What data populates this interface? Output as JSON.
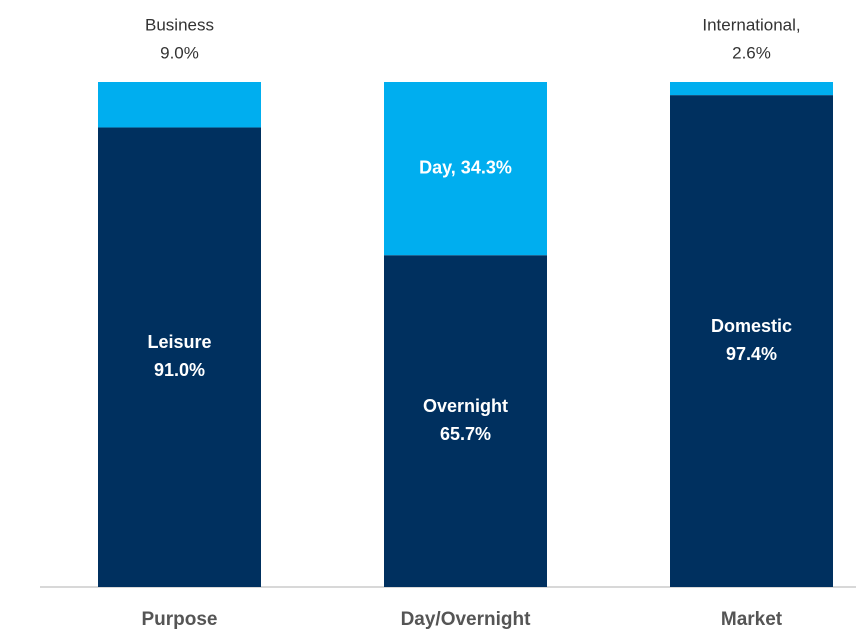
{
  "chart_data": {
    "type": "stacked_bar",
    "categories": [
      "Purpose",
      "Day/Overnight",
      "Market"
    ],
    "ylim": [
      0,
      100
    ],
    "series": [
      {
        "color": "#00305f",
        "values": [
          91.0,
          65.7,
          97.4
        ],
        "value_labels": [
          [
            "Leisure",
            "91.0%"
          ],
          [
            "Overnight",
            "65.7%"
          ],
          [
            "Domestic",
            "97.4%"
          ]
        ]
      },
      {
        "color": "#00aeef",
        "values": [
          9.0,
          34.3,
          2.6
        ],
        "value_labels": [
          [
            "Business",
            "9.0%"
          ],
          [
            "Day, 34.3%"
          ],
          [
            "International,",
            "2.6%"
          ]
        ]
      }
    ]
  }
}
